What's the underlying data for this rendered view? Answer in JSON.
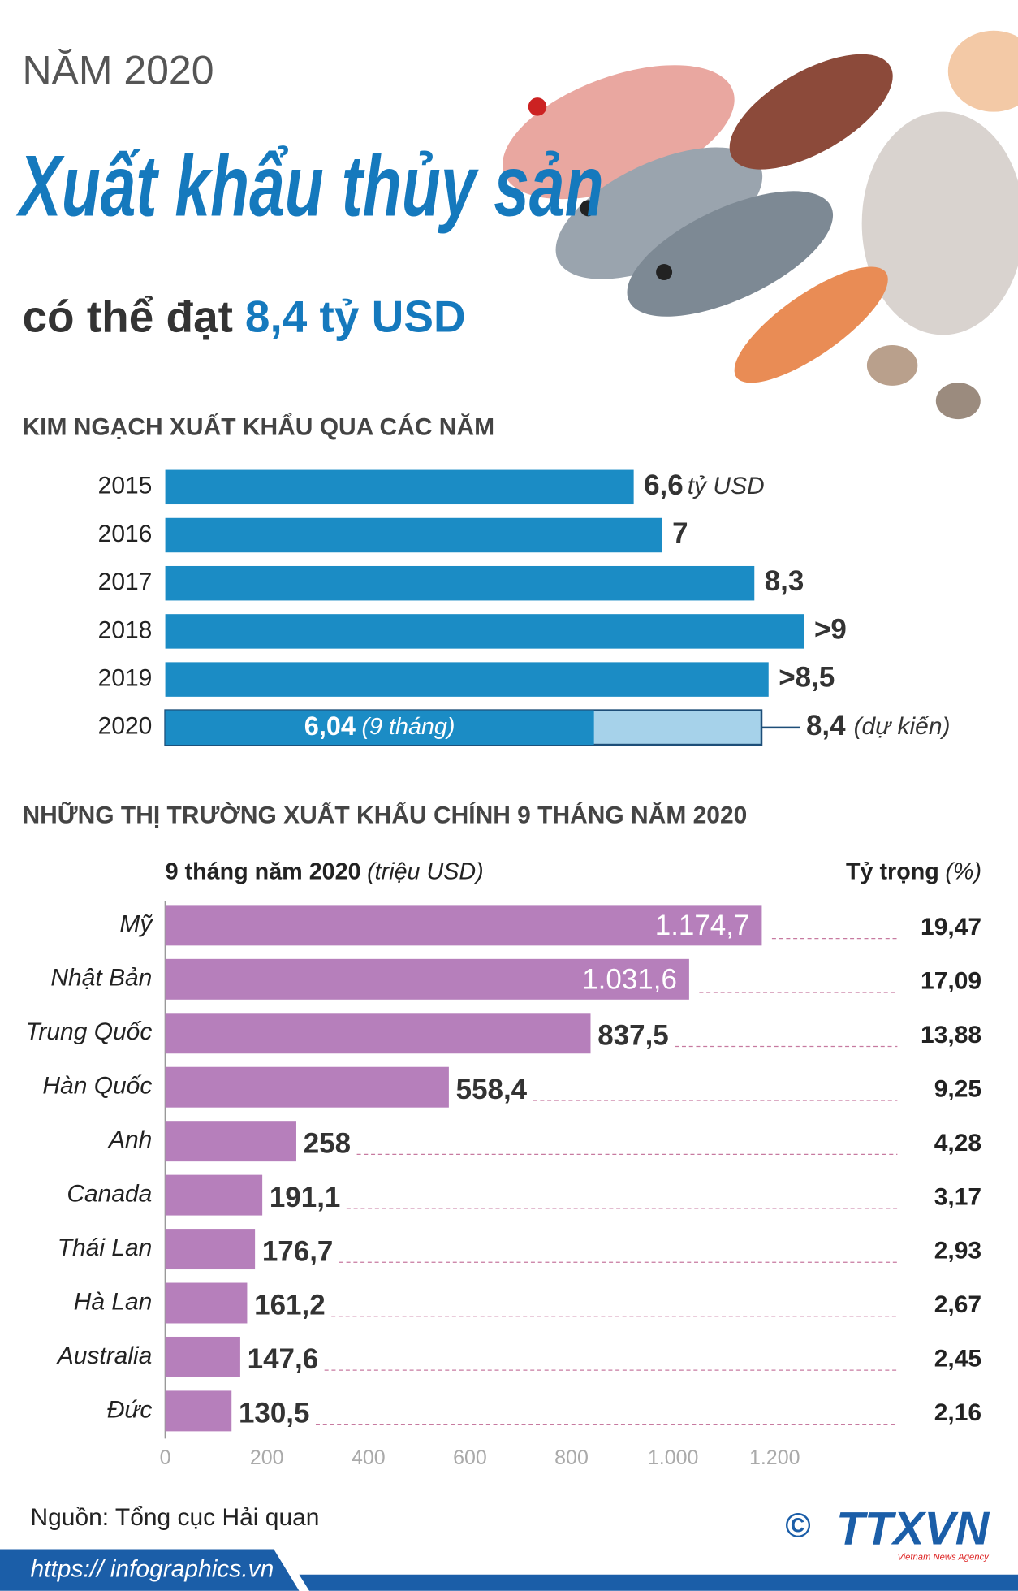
{
  "header": {
    "year_label": "NĂM 2020",
    "title": "Xuất khẩu thủy sản",
    "subtitle_prefix": "có thể đạt",
    "subtitle_value": "8,4 tỷ USD"
  },
  "chart_data": [
    {
      "type": "bar",
      "orientation": "horizontal",
      "title": "KIM NGẠCH XUẤT KHẨU QUA CÁC NĂM",
      "categories": [
        "2015",
        "2016",
        "2017",
        "2018",
        "2019",
        "2020"
      ],
      "values": [
        6.6,
        7,
        8.3,
        9,
        8.5,
        8.4
      ],
      "value_labels": [
        "6,6",
        "7",
        "8,3",
        ">9",
        ">8,5",
        "8,4"
      ],
      "unit": "tỷ USD",
      "color": "#1b8cc5",
      "forecast_color": "#a6d2ea",
      "partial": {
        "value": 6.04,
        "label": "6,04",
        "note": "(9 tháng)"
      },
      "forecast_note": "(dự kiến)"
    },
    {
      "type": "bar",
      "orientation": "horizontal",
      "title": "NHỮNG THỊ TRƯỜNG XUẤT KHẨU CHÍNH 9 THÁNG NĂM 2020",
      "axis_label": "9 tháng năm 2020",
      "axis_unit": "(triệu USD)",
      "share_label": "Tỷ trọng",
      "share_unit": "(%)",
      "categories": [
        "Mỹ",
        "Nhật Bản",
        "Trung Quốc",
        "Hàn Quốc",
        "Anh",
        "Canada",
        "Thái Lan",
        "Hà Lan",
        "Australia",
        "Đức"
      ],
      "values": [
        1174.7,
        1031.6,
        837.5,
        558.4,
        258,
        191.1,
        176.7,
        161.2,
        147.6,
        130.5
      ],
      "value_labels": [
        "1.174,7",
        "1.031,6",
        "837,5",
        "558,4",
        "258",
        "191,1",
        "176,7",
        "161,2",
        "147,6",
        "130,5"
      ],
      "shares": [
        19.47,
        17.09,
        13.88,
        9.25,
        4.28,
        3.17,
        2.93,
        2.67,
        2.45,
        2.16
      ],
      "share_labels": [
        "19,47",
        "17,09",
        "13,88",
        "9,25",
        "4,28",
        "3,17",
        "2,93",
        "2,67",
        "2,45",
        "2,16"
      ],
      "color": "#b67fbb",
      "xlim": [
        0,
        1200
      ],
      "xticks": [
        0,
        200,
        400,
        600,
        800,
        {
          "value": 1000,
          "label": "1.000"
        },
        {
          "value": 1200,
          "label": "1.200"
        }
      ]
    }
  ],
  "footer": {
    "source": "Nguồn: Tổng cục Hải quan",
    "url": "https:// infographics.vn",
    "logo": "TTXVN",
    "logo_sub": "Vietnam News Agency",
    "copyright": "©"
  }
}
